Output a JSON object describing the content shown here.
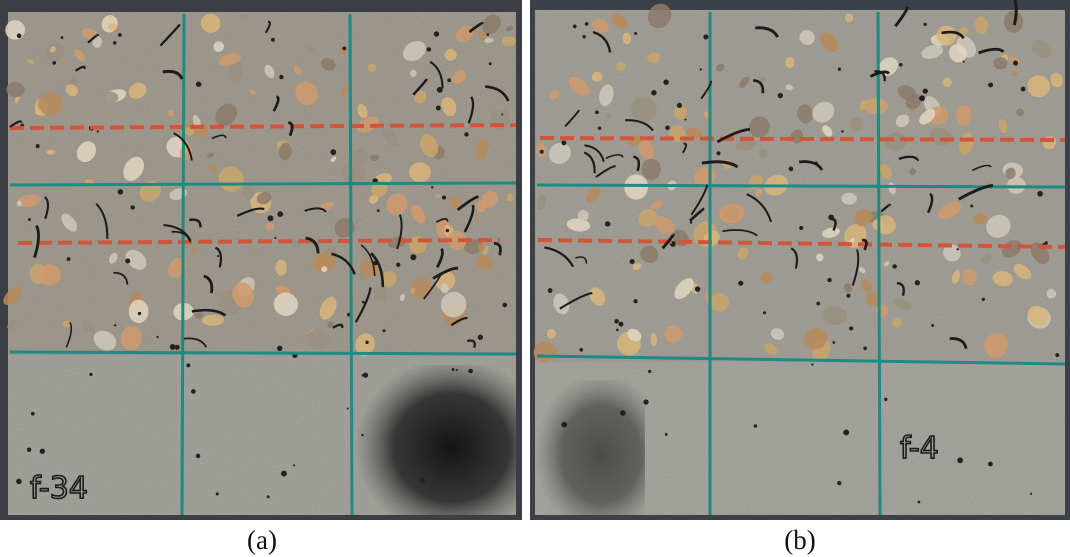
{
  "panels": [
    {
      "caption": "(a)",
      "specimen_label": "f-34"
    },
    {
      "caption": "(b)",
      "specimen_label": "f-4"
    }
  ]
}
